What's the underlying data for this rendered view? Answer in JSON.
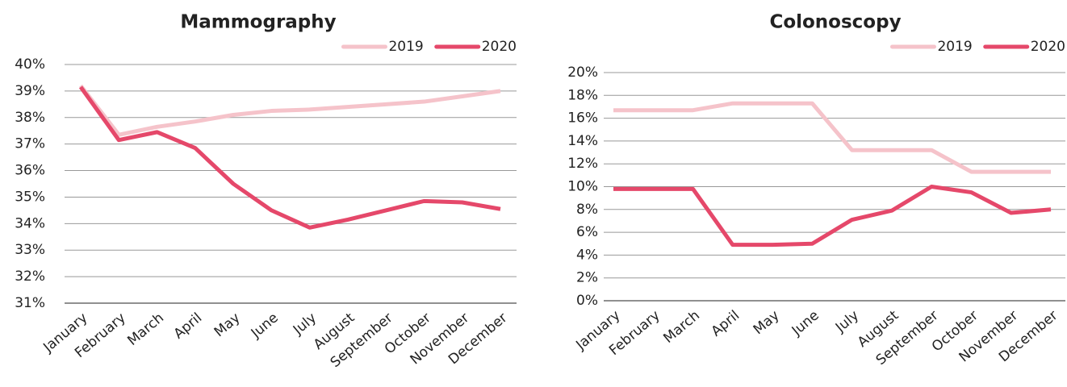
{
  "chart_data": [
    {
      "type": "line",
      "title": "Mammography",
      "categories": [
        "January",
        "February",
        "March",
        "April",
        "May",
        "June",
        "July",
        "August",
        "September",
        "October",
        "November",
        "December"
      ],
      "series": [
        {
          "name": "2019",
          "color": "#f5c3ca",
          "values": [
            39.2,
            37.35,
            37.65,
            37.85,
            38.1,
            38.25,
            38.3,
            38.4,
            38.5,
            38.6,
            38.8,
            39.0
          ]
        },
        {
          "name": "2020",
          "color": "#e5486a",
          "values": [
            39.15,
            37.15,
            37.45,
            36.85,
            35.5,
            34.5,
            33.85,
            34.15,
            34.5,
            34.85,
            34.8,
            34.55
          ]
        }
      ],
      "ylim": [
        31,
        40
      ],
      "yticks": [
        {
          "value": 31,
          "label": "31%"
        },
        {
          "value": 32,
          "label": "32%"
        },
        {
          "value": 33,
          "label": "33%"
        },
        {
          "value": 34,
          "label": "34%"
        },
        {
          "value": 35,
          "label": "35%"
        },
        {
          "value": 36,
          "label": "36%"
        },
        {
          "value": 37,
          "label": "37%"
        },
        {
          "value": 38,
          "label": "38%"
        },
        {
          "value": 39,
          "label": "39%"
        },
        {
          "value": 40,
          "label": "40%"
        }
      ],
      "grid": true,
      "legend": "top-right"
    },
    {
      "type": "line",
      "title": "Colonoscopy",
      "categories": [
        "January",
        "February",
        "March",
        "April",
        "May",
        "June",
        "July",
        "August",
        "September",
        "October",
        "November",
        "December"
      ],
      "series": [
        {
          "name": "2019",
          "color": "#f5c3ca",
          "values": [
            16.7,
            16.7,
            16.7,
            17.3,
            17.3,
            17.3,
            13.2,
            13.2,
            13.2,
            11.3,
            11.3,
            11.3
          ]
        },
        {
          "name": "2020",
          "color": "#e5486a",
          "values": [
            9.8,
            9.8,
            9.8,
            4.9,
            4.9,
            5.0,
            7.1,
            7.9,
            10.0,
            9.5,
            7.7,
            8.0
          ]
        }
      ],
      "ylim": [
        0,
        20
      ],
      "yticks": [
        {
          "value": 0,
          "label": "0%"
        },
        {
          "value": 2,
          "label": "2%"
        },
        {
          "value": 4,
          "label": "4%"
        },
        {
          "value": 6,
          "label": "6%"
        },
        {
          "value": 8,
          "label": "8%"
        },
        {
          "value": 10,
          "label": "10%"
        },
        {
          "value": 12,
          "label": "12%"
        },
        {
          "value": 14,
          "label": "14%"
        },
        {
          "value": 16,
          "label": "16%"
        },
        {
          "value": 18,
          "label": "18%"
        },
        {
          "value": 20,
          "label": "20%"
        }
      ],
      "grid": true,
      "legend": "top-right"
    }
  ]
}
